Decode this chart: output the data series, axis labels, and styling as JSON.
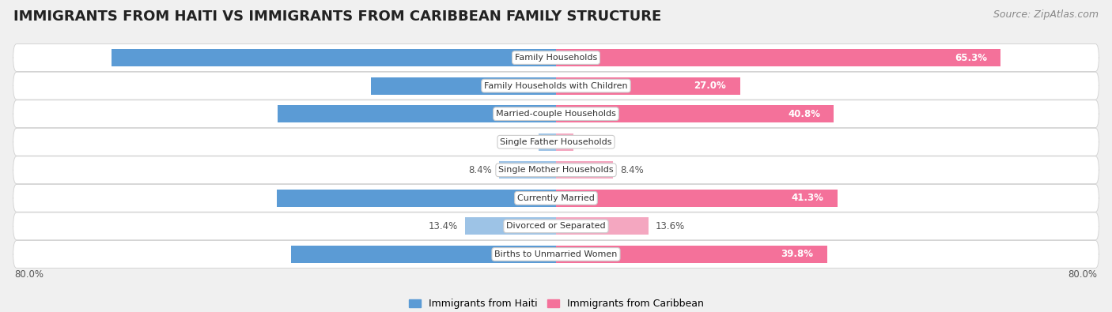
{
  "title": "IMMIGRANTS FROM HAITI VS IMMIGRANTS FROM CARIBBEAN FAMILY STRUCTURE",
  "source": "Source: ZipAtlas.com",
  "categories": [
    "Family Households",
    "Family Households with Children",
    "Married-couple Households",
    "Single Father Households",
    "Single Mother Households",
    "Currently Married",
    "Divorced or Separated",
    "Births to Unmarried Women"
  ],
  "haiti_values": [
    65.3,
    27.2,
    40.9,
    2.6,
    8.4,
    41.0,
    13.4,
    38.9
  ],
  "caribbean_values": [
    65.3,
    27.0,
    40.8,
    2.5,
    8.4,
    41.3,
    13.6,
    39.8
  ],
  "haiti_color_strong": "#5b9bd5",
  "haiti_color_light": "#9dc3e6",
  "caribbean_color_strong": "#f4719a",
  "caribbean_color_light": "#f4a7c0",
  "haiti_label": "Immigrants from Haiti",
  "caribbean_label": "Immigrants from Caribbean",
  "x_max": 80.0,
  "background_color": "#f0f0f0",
  "row_bg_color": "#ffffff",
  "title_fontsize": 13,
  "source_fontsize": 9,
  "bar_height": 0.62,
  "value_label_fontsize": 8.5,
  "category_fontsize": 8.0,
  "strong_threshold": 20.0
}
